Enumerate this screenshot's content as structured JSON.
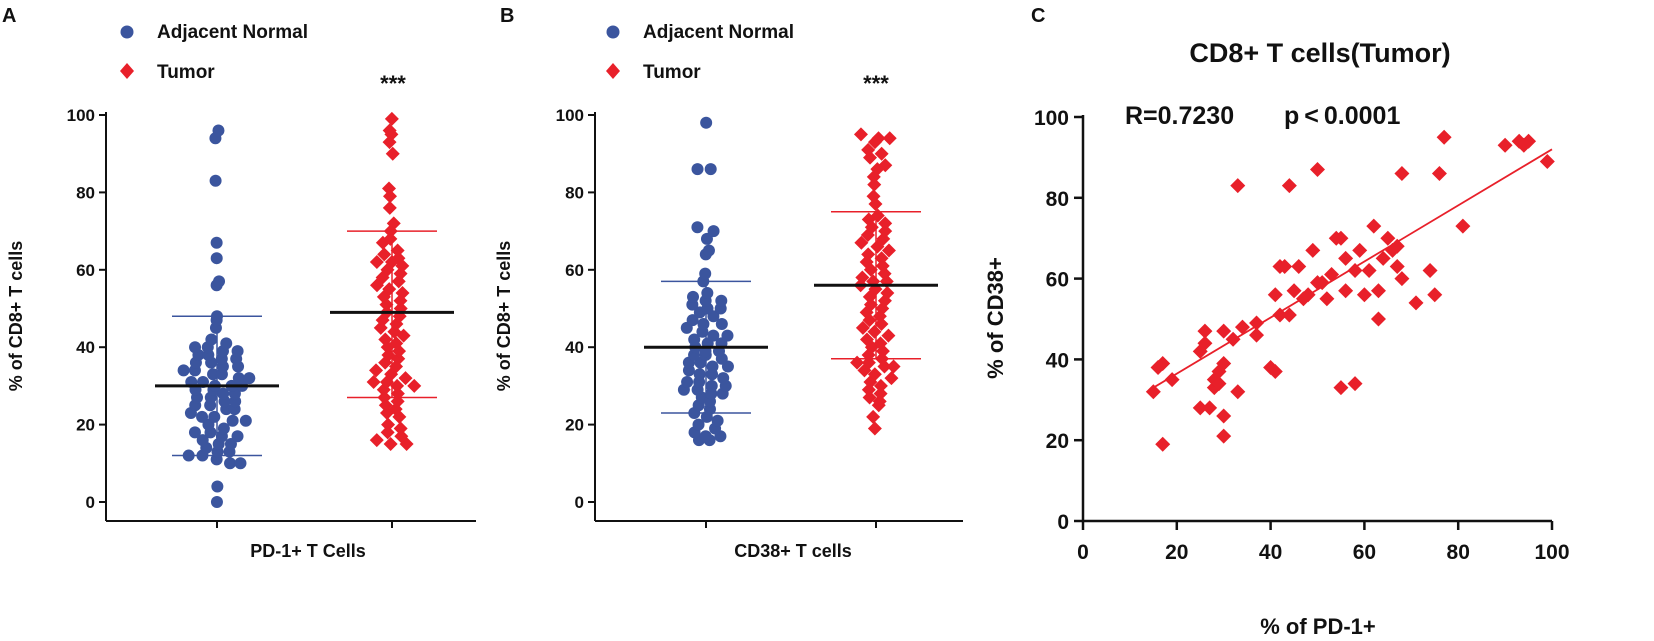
{
  "colors": {
    "normal": "#3b559e",
    "tumor": "#e8202a",
    "axis": "#111111",
    "mean_line": "#111111"
  },
  "chart_data": [
    {
      "panel": "A",
      "type": "scatter",
      "xlabel": "PD-1+ T Cells",
      "ylabel": "% of CD8+ T cells",
      "ylim": [
        0,
        100
      ],
      "yticks": [
        0,
        20,
        40,
        60,
        80,
        100
      ],
      "significance": "***",
      "legend": [
        {
          "name": "Adjacent Normal",
          "marker": "circle",
          "color": "#3b559e"
        },
        {
          "name": "Tumor",
          "marker": "diamond",
          "color": "#e8202a"
        }
      ],
      "series": [
        {
          "name": "Adjacent Normal",
          "mean": 30,
          "sd_low": 12,
          "sd_high": 48,
          "values": [
            96,
            94,
            83,
            67,
            63,
            57,
            56,
            48,
            47,
            45,
            42,
            41,
            40,
            40,
            39,
            39,
            38,
            38,
            37,
            37,
            36,
            36,
            35,
            35,
            34,
            34,
            33,
            33,
            32,
            32,
            31,
            31,
            30,
            30,
            30,
            29,
            29,
            28,
            28,
            27,
            27,
            26,
            26,
            25,
            25,
            24,
            24,
            23,
            22,
            22,
            21,
            21,
            20,
            19,
            18,
            18,
            17,
            17,
            16,
            15,
            15,
            14,
            13,
            13,
            12,
            12,
            11,
            10,
            10,
            4,
            0
          ]
        },
        {
          "name": "Tumor",
          "mean": 49,
          "sd_low": 27,
          "sd_high": 70,
          "values": [
            99,
            96,
            95,
            93,
            90,
            81,
            79,
            76,
            72,
            70,
            68,
            67,
            65,
            64,
            63,
            62,
            62,
            61,
            60,
            59,
            58,
            57,
            56,
            55,
            54,
            53,
            52,
            51,
            50,
            49,
            48,
            47,
            46,
            45,
            44,
            43,
            42,
            41,
            40,
            39,
            38,
            37,
            36,
            35,
            34,
            33,
            32,
            31,
            31,
            30,
            30,
            29,
            28,
            27,
            26,
            25,
            24,
            23,
            22,
            20,
            19,
            18,
            17,
            16,
            15,
            15
          ]
        }
      ]
    },
    {
      "panel": "B",
      "type": "scatter",
      "xlabel": "CD38+ T cells",
      "ylabel": "% of CD8+ T cells",
      "ylim": [
        0,
        100
      ],
      "yticks": [
        0,
        20,
        40,
        60,
        80,
        100
      ],
      "significance": "***",
      "legend": [
        {
          "name": "Adjacent Normal",
          "marker": "circle",
          "color": "#3b559e"
        },
        {
          "name": "Tumor",
          "marker": "diamond",
          "color": "#e8202a"
        }
      ],
      "series": [
        {
          "name": "Adjacent Normal",
          "mean": 40,
          "sd_low": 23,
          "sd_high": 57,
          "values": [
            98,
            86,
            86,
            71,
            70,
            68,
            65,
            64,
            59,
            57,
            54,
            53,
            52,
            52,
            51,
            50,
            50,
            49,
            48,
            47,
            46,
            46,
            45,
            44,
            43,
            43,
            42,
            41,
            41,
            40,
            39,
            39,
            38,
            38,
            37,
            36,
            36,
            35,
            35,
            34,
            33,
            33,
            32,
            31,
            31,
            30,
            30,
            29,
            29,
            28,
            28,
            27,
            26,
            25,
            24,
            23,
            22,
            21,
            20,
            19,
            18,
            17,
            17,
            16,
            16
          ]
        },
        {
          "name": "Tumor",
          "mean": 56,
          "sd_low": 37,
          "sd_high": 75,
          "values": [
            95,
            94,
            94,
            93,
            91,
            90,
            89,
            87,
            86,
            84,
            82,
            79,
            77,
            74,
            73,
            72,
            71,
            70,
            69,
            68,
            67,
            66,
            65,
            64,
            63,
            62,
            61,
            60,
            59,
            58,
            57,
            57,
            56,
            55,
            54,
            53,
            52,
            51,
            50,
            49,
            48,
            47,
            46,
            45,
            44,
            43,
            42,
            41,
            40,
            39,
            38,
            37,
            36,
            36,
            35,
            35,
            34,
            33,
            32,
            31,
            30,
            29,
            28,
            27,
            26,
            25,
            22,
            19
          ]
        }
      ]
    },
    {
      "panel": "C",
      "type": "scatter",
      "title": "CD8+ T cells(Tumor)",
      "xlabel": "% of PD-1+",
      "ylabel": "% of CD38+",
      "xlim": [
        0,
        100
      ],
      "ylim": [
        0,
        100
      ],
      "xticks": [
        0,
        20,
        40,
        60,
        80,
        100
      ],
      "yticks": [
        0,
        20,
        40,
        60,
        80,
        100
      ],
      "annotation_r": "R=0.7230",
      "annotation_p": "p < 0.0001",
      "fit_line": {
        "x": [
          15,
          100
        ],
        "y": [
          33,
          92
        ]
      },
      "series": [
        {
          "name": "Tumor",
          "marker": "diamond",
          "points": [
            [
              15,
              32
            ],
            [
              16,
              38
            ],
            [
              17,
              39
            ],
            [
              17,
              19
            ],
            [
              19,
              35
            ],
            [
              25,
              42
            ],
            [
              26,
              47
            ],
            [
              26,
              44
            ],
            [
              25,
              28
            ],
            [
              27,
              28
            ],
            [
              28,
              33
            ],
            [
              28,
              35
            ],
            [
              29,
              37
            ],
            [
              29,
              34
            ],
            [
              30,
              39
            ],
            [
              30,
              47
            ],
            [
              30,
              26
            ],
            [
              30,
              21
            ],
            [
              32,
              45
            ],
            [
              33,
              83
            ],
            [
              34,
              48
            ],
            [
              33,
              32
            ],
            [
              37,
              49
            ],
            [
              37,
              46
            ],
            [
              40,
              38
            ],
            [
              41,
              37
            ],
            [
              41,
              56
            ],
            [
              42,
              51
            ],
            [
              42,
              63
            ],
            [
              43,
              63
            ],
            [
              44,
              51
            ],
            [
              44,
              83
            ],
            [
              45,
              57
            ],
            [
              46,
              63
            ],
            [
              47,
              55
            ],
            [
              48,
              56
            ],
            [
              49,
              67
            ],
            [
              50,
              87
            ],
            [
              50,
              59
            ],
            [
              51,
              59
            ],
            [
              52,
              55
            ],
            [
              53,
              61
            ],
            [
              54,
              70
            ],
            [
              55,
              33
            ],
            [
              55,
              70
            ],
            [
              56,
              65
            ],
            [
              56,
              57
            ],
            [
              58,
              34
            ],
            [
              58,
              62
            ],
            [
              59,
              67
            ],
            [
              60,
              56
            ],
            [
              61,
              62
            ],
            [
              62,
              73
            ],
            [
              63,
              50
            ],
            [
              63,
              57
            ],
            [
              64,
              65
            ],
            [
              65,
              70
            ],
            [
              66,
              67
            ],
            [
              67,
              63
            ],
            [
              67,
              68
            ],
            [
              68,
              86
            ],
            [
              68,
              60
            ],
            [
              71,
              54
            ],
            [
              74,
              62
            ],
            [
              75,
              56
            ],
            [
              76,
              86
            ],
            [
              77,
              95
            ],
            [
              81,
              73
            ],
            [
              90,
              93
            ],
            [
              93,
              94
            ],
            [
              94,
              93
            ],
            [
              95,
              94
            ],
            [
              99,
              89
            ]
          ]
        }
      ]
    }
  ]
}
